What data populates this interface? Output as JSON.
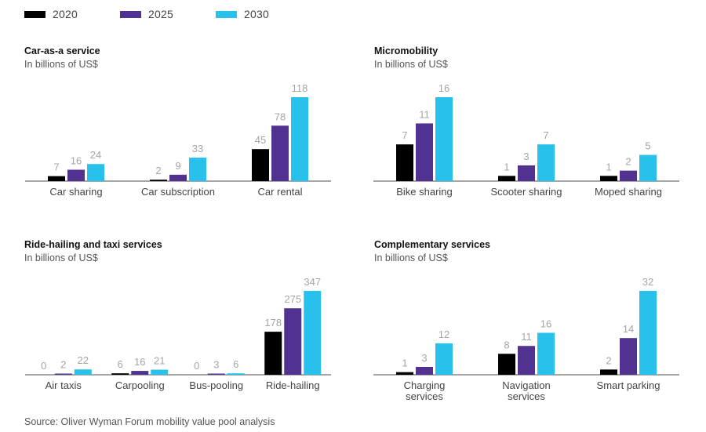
{
  "legend": [
    {
      "label": "2020",
      "color": "#000000"
    },
    {
      "label": "2025",
      "color": "#523291"
    },
    {
      "label": "2030",
      "color": "#27c1eb"
    }
  ],
  "source": "Source: Oliver Wyman Forum mobility value pool analysis",
  "chart_data": [
    {
      "type": "bar",
      "title": "Car-as-a service",
      "subtitle": "In billions of US$",
      "xlabel": "",
      "ylabel": "In billions of US$",
      "categories": [
        [
          "Car sharing"
        ],
        [
          "Car subscription"
        ],
        [
          "Car rental"
        ]
      ],
      "series": [
        {
          "name": "2020",
          "values": [
            7,
            2,
            45
          ]
        },
        {
          "name": "2025",
          "values": [
            16,
            9,
            78
          ]
        },
        {
          "name": "2030",
          "values": [
            24,
            33,
            118
          ]
        }
      ],
      "ylim": [
        0,
        118
      ],
      "grid": false,
      "legend": "top-left"
    },
    {
      "type": "bar",
      "title": "Micromobility",
      "subtitle": "In billions of US$",
      "xlabel": "",
      "ylabel": "In billions of US$",
      "categories": [
        [
          "Bike sharing"
        ],
        [
          "Scooter sharing"
        ],
        [
          "Moped sharing"
        ]
      ],
      "series": [
        {
          "name": "2020",
          "values": [
            7,
            1,
            1
          ]
        },
        {
          "name": "2025",
          "values": [
            11,
            3,
            2
          ]
        },
        {
          "name": "2030",
          "values": [
            16,
            7,
            5
          ]
        }
      ],
      "ylim": [
        0,
        16
      ],
      "grid": false,
      "legend": "top-left"
    },
    {
      "type": "bar",
      "title": "Ride-hailing and taxi services",
      "subtitle": "In billions of US$",
      "xlabel": "",
      "ylabel": "In billions of US$",
      "categories": [
        [
          "Air taxis"
        ],
        [
          "Carpooling"
        ],
        [
          "Bus-pooling"
        ],
        [
          "Ride-hailing"
        ]
      ],
      "series": [
        {
          "name": "2020",
          "values": [
            0,
            6,
            0,
            178
          ]
        },
        {
          "name": "2025",
          "values": [
            2,
            16,
            3,
            275
          ]
        },
        {
          "name": "2030",
          "values": [
            22,
            21,
            6,
            347
          ]
        }
      ],
      "ylim": [
        0,
        347
      ],
      "grid": false,
      "legend": "top-left"
    },
    {
      "type": "bar",
      "title": "Complementary services",
      "subtitle": "In billions of US$",
      "xlabel": "",
      "ylabel": "In billions of US$",
      "categories": [
        [
          "Charging",
          "services"
        ],
        [
          "Navigation",
          "services"
        ],
        [
          "Smart parking"
        ]
      ],
      "series": [
        {
          "name": "2020",
          "values": [
            1,
            8,
            2
          ]
        },
        {
          "name": "2025",
          "values": [
            3,
            11,
            14
          ]
        },
        {
          "name": "2030",
          "values": [
            12,
            16,
            32
          ]
        }
      ],
      "ylim": [
        0,
        32
      ],
      "grid": false,
      "legend": "top-left"
    }
  ]
}
